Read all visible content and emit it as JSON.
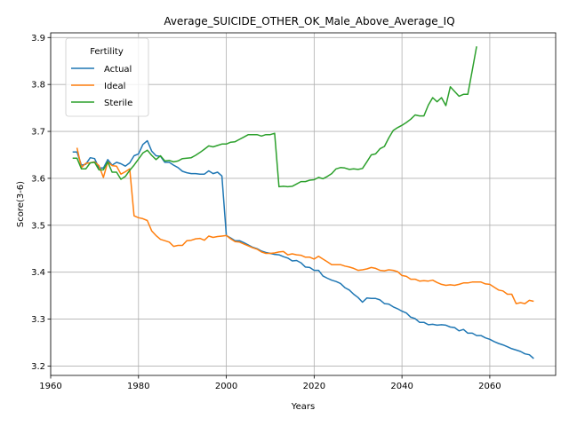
{
  "chart_data": {
    "type": "line",
    "title": "Average_SUICIDE_OTHER_OK_Male_Above_Average_IQ",
    "xlabel": "Years",
    "ylabel": "Score(3-6)",
    "xlim": [
      1960,
      2075
    ],
    "ylim": [
      3.18,
      3.91
    ],
    "xticks": [
      1960,
      1980,
      2000,
      2020,
      2040,
      2060
    ],
    "yticks": [
      3.2,
      3.3,
      3.4,
      3.5,
      3.6,
      3.7,
      3.8,
      3.9
    ],
    "grid": true,
    "legend": {
      "title": "Fertility",
      "location": "upper-left"
    },
    "series": [
      {
        "name": "Actual",
        "color": "#1f77b4",
        "points": [
          [
            1965,
            3.656
          ],
          [
            1966,
            3.656
          ],
          [
            1967,
            3.628
          ],
          [
            1968,
            3.63
          ],
          [
            1969,
            3.644
          ],
          [
            1970,
            3.642
          ],
          [
            1971,
            3.622
          ],
          [
            1972,
            3.622
          ],
          [
            1973,
            3.64
          ],
          [
            1974,
            3.628
          ],
          [
            1975,
            3.634
          ],
          [
            1976,
            3.631
          ],
          [
            1977,
            3.626
          ],
          [
            1978,
            3.633
          ],
          [
            1979,
            3.648
          ],
          [
            1980,
            3.652
          ],
          [
            1981,
            3.672
          ],
          [
            1982,
            3.68
          ],
          [
            1983,
            3.658
          ],
          [
            1984,
            3.648
          ],
          [
            1985,
            3.647
          ],
          [
            1986,
            3.634
          ],
          [
            1987,
            3.634
          ],
          [
            1988,
            3.628
          ],
          [
            1989,
            3.623
          ],
          [
            1990,
            3.615
          ],
          [
            1991,
            3.612
          ],
          [
            1992,
            3.61
          ],
          [
            1993,
            3.61
          ],
          [
            1994,
            3.609
          ],
          [
            1995,
            3.609
          ],
          [
            1996,
            3.616
          ],
          [
            1997,
            3.61
          ],
          [
            1998,
            3.613
          ],
          [
            1999,
            3.605
          ],
          [
            2000,
            3.478
          ],
          [
            2001,
            3.473
          ],
          [
            2002,
            3.467
          ],
          [
            2003,
            3.467
          ],
          [
            2004,
            3.463
          ],
          [
            2005,
            3.458
          ],
          [
            2006,
            3.453
          ],
          [
            2007,
            3.45
          ],
          [
            2008,
            3.445
          ],
          [
            2009,
            3.442
          ],
          [
            2010,
            3.44
          ],
          [
            2011,
            3.438
          ],
          [
            2012,
            3.437
          ],
          [
            2013,
            3.433
          ],
          [
            2014,
            3.43
          ],
          [
            2015,
            3.424
          ],
          [
            2016,
            3.425
          ],
          [
            2017,
            3.42
          ],
          [
            2018,
            3.411
          ],
          [
            2019,
            3.41
          ],
          [
            2020,
            3.404
          ],
          [
            2021,
            3.404
          ],
          [
            2022,
            3.392
          ],
          [
            2023,
            3.387
          ],
          [
            2024,
            3.383
          ],
          [
            2025,
            3.38
          ],
          [
            2026,
            3.376
          ],
          [
            2027,
            3.367
          ],
          [
            2028,
            3.362
          ],
          [
            2029,
            3.353
          ],
          [
            2030,
            3.346
          ],
          [
            2031,
            3.336
          ],
          [
            2032,
            3.345
          ],
          [
            2033,
            3.344
          ],
          [
            2034,
            3.344
          ],
          [
            2035,
            3.341
          ],
          [
            2036,
            3.333
          ],
          [
            2037,
            3.332
          ],
          [
            2038,
            3.326
          ],
          [
            2039,
            3.322
          ],
          [
            2040,
            3.317
          ],
          [
            2041,
            3.313
          ],
          [
            2042,
            3.304
          ],
          [
            2043,
            3.301
          ],
          [
            2044,
            3.293
          ],
          [
            2045,
            3.293
          ],
          [
            2046,
            3.288
          ],
          [
            2047,
            3.289
          ],
          [
            2048,
            3.287
          ],
          [
            2049,
            3.288
          ],
          [
            2050,
            3.287
          ],
          [
            2051,
            3.283
          ],
          [
            2052,
            3.282
          ],
          [
            2053,
            3.275
          ],
          [
            2054,
            3.278
          ],
          [
            2055,
            3.27
          ],
          [
            2056,
            3.27
          ],
          [
            2057,
            3.265
          ],
          [
            2058,
            3.265
          ],
          [
            2059,
            3.26
          ],
          [
            2060,
            3.257
          ],
          [
            2061,
            3.252
          ],
          [
            2062,
            3.248
          ],
          [
            2063,
            3.245
          ],
          [
            2064,
            3.241
          ],
          [
            2065,
            3.237
          ],
          [
            2066,
            3.234
          ],
          [
            2067,
            3.231
          ],
          [
            2068,
            3.226
          ],
          [
            2069,
            3.224
          ],
          [
            2070,
            3.216
          ]
        ]
      },
      {
        "name": "Ideal",
        "color": "#ff7f0e",
        "points": [
          [
            1966,
            3.665
          ],
          [
            1967,
            3.623
          ],
          [
            1968,
            3.632
          ],
          [
            1969,
            3.633
          ],
          [
            1970,
            3.635
          ],
          [
            1971,
            3.627
          ],
          [
            1972,
            3.602
          ],
          [
            1973,
            3.635
          ],
          [
            1974,
            3.627
          ],
          [
            1975,
            3.626
          ],
          [
            1976,
            3.609
          ],
          [
            1977,
            3.614
          ],
          [
            1978,
            3.62
          ],
          [
            1979,
            3.52
          ],
          [
            1980,
            3.516
          ],
          [
            1981,
            3.514
          ],
          [
            1982,
            3.51
          ],
          [
            1983,
            3.488
          ],
          [
            1984,
            3.478
          ],
          [
            1985,
            3.47
          ],
          [
            1986,
            3.467
          ],
          [
            1987,
            3.464
          ],
          [
            1988,
            3.455
          ],
          [
            1989,
            3.457
          ],
          [
            1990,
            3.457
          ],
          [
            1991,
            3.467
          ],
          [
            1992,
            3.468
          ],
          [
            1993,
            3.471
          ],
          [
            1994,
            3.472
          ],
          [
            1995,
            3.468
          ],
          [
            1996,
            3.477
          ],
          [
            1997,
            3.474
          ],
          [
            1998,
            3.476
          ],
          [
            1999,
            3.477
          ],
          [
            2000,
            3.478
          ],
          [
            2001,
            3.471
          ],
          [
            2002,
            3.465
          ],
          [
            2003,
            3.464
          ],
          [
            2004,
            3.46
          ],
          [
            2005,
            3.456
          ],
          [
            2006,
            3.452
          ],
          [
            2007,
            3.449
          ],
          [
            2008,
            3.443
          ],
          [
            2009,
            3.44
          ],
          [
            2010,
            3.44
          ],
          [
            2011,
            3.441
          ],
          [
            2012,
            3.443
          ],
          [
            2013,
            3.444
          ],
          [
            2014,
            3.437
          ],
          [
            2015,
            3.439
          ],
          [
            2016,
            3.437
          ],
          [
            2017,
            3.436
          ],
          [
            2018,
            3.432
          ],
          [
            2019,
            3.432
          ],
          [
            2020,
            3.428
          ],
          [
            2021,
            3.434
          ],
          [
            2022,
            3.428
          ],
          [
            2023,
            3.422
          ],
          [
            2024,
            3.416
          ],
          [
            2025,
            3.416
          ],
          [
            2026,
            3.416
          ],
          [
            2027,
            3.413
          ],
          [
            2028,
            3.411
          ],
          [
            2029,
            3.408
          ],
          [
            2030,
            3.404
          ],
          [
            2031,
            3.405
          ],
          [
            2032,
            3.407
          ],
          [
            2033,
            3.41
          ],
          [
            2034,
            3.408
          ],
          [
            2035,
            3.404
          ],
          [
            2036,
            3.403
          ],
          [
            2037,
            3.405
          ],
          [
            2038,
            3.404
          ],
          [
            2039,
            3.401
          ],
          [
            2040,
            3.393
          ],
          [
            2041,
            3.391
          ],
          [
            2042,
            3.385
          ],
          [
            2043,
            3.385
          ],
          [
            2044,
            3.381
          ],
          [
            2045,
            3.382
          ],
          [
            2046,
            3.381
          ],
          [
            2047,
            3.383
          ],
          [
            2048,
            3.378
          ],
          [
            2049,
            3.374
          ],
          [
            2050,
            3.372
          ],
          [
            2051,
            3.373
          ],
          [
            2052,
            3.372
          ],
          [
            2053,
            3.374
          ],
          [
            2054,
            3.377
          ],
          [
            2055,
            3.377
          ],
          [
            2056,
            3.379
          ],
          [
            2057,
            3.379
          ],
          [
            2058,
            3.379
          ],
          [
            2059,
            3.375
          ],
          [
            2060,
            3.374
          ],
          [
            2061,
            3.368
          ],
          [
            2062,
            3.362
          ],
          [
            2063,
            3.36
          ],
          [
            2064,
            3.353
          ],
          [
            2065,
            3.353
          ],
          [
            2066,
            3.333
          ],
          [
            2067,
            3.335
          ],
          [
            2068,
            3.333
          ],
          [
            2069,
            3.34
          ],
          [
            2070,
            3.338
          ]
        ]
      },
      {
        "name": "Sterile",
        "color": "#2ca02c",
        "points": [
          [
            1965,
            3.643
          ],
          [
            1966,
            3.643
          ],
          [
            1967,
            3.62
          ],
          [
            1968,
            3.62
          ],
          [
            1969,
            3.633
          ],
          [
            1970,
            3.634
          ],
          [
            1971,
            3.618
          ],
          [
            1972,
            3.618
          ],
          [
            1973,
            3.635
          ],
          [
            1974,
            3.613
          ],
          [
            1975,
            3.613
          ],
          [
            1976,
            3.598
          ],
          [
            1977,
            3.604
          ],
          [
            1978,
            3.617
          ],
          [
            1979,
            3.628
          ],
          [
            1980,
            3.641
          ],
          [
            1981,
            3.654
          ],
          [
            1982,
            3.66
          ],
          [
            1983,
            3.649
          ],
          [
            1984,
            3.64
          ],
          [
            1985,
            3.648
          ],
          [
            1986,
            3.637
          ],
          [
            1987,
            3.638
          ],
          [
            1988,
            3.635
          ],
          [
            1989,
            3.637
          ],
          [
            1990,
            3.642
          ],
          [
            1991,
            3.643
          ],
          [
            1992,
            3.644
          ],
          [
            1993,
            3.649
          ],
          [
            1994,
            3.655
          ],
          [
            1995,
            3.662
          ],
          [
            1996,
            3.669
          ],
          [
            1997,
            3.667
          ],
          [
            1998,
            3.67
          ],
          [
            1999,
            3.673
          ],
          [
            2000,
            3.673
          ],
          [
            2001,
            3.677
          ],
          [
            2002,
            3.678
          ],
          [
            2003,
            3.683
          ],
          [
            2004,
            3.688
          ],
          [
            2005,
            3.693
          ],
          [
            2006,
            3.693
          ],
          [
            2007,
            3.693
          ],
          [
            2008,
            3.69
          ],
          [
            2009,
            3.693
          ],
          [
            2010,
            3.693
          ],
          [
            2011,
            3.696
          ],
          [
            2012,
            3.582
          ],
          [
            2013,
            3.583
          ],
          [
            2014,
            3.582
          ],
          [
            2015,
            3.583
          ],
          [
            2016,
            3.588
          ],
          [
            2017,
            3.593
          ],
          [
            2018,
            3.593
          ],
          [
            2019,
            3.596
          ],
          [
            2020,
            3.597
          ],
          [
            2021,
            3.602
          ],
          [
            2022,
            3.599
          ],
          [
            2023,
            3.604
          ],
          [
            2024,
            3.61
          ],
          [
            2025,
            3.62
          ],
          [
            2026,
            3.623
          ],
          [
            2027,
            3.622
          ],
          [
            2028,
            3.619
          ],
          [
            2029,
            3.62
          ],
          [
            2030,
            3.619
          ],
          [
            2031,
            3.621
          ],
          [
            2032,
            3.635
          ],
          [
            2033,
            3.65
          ],
          [
            2034,
            3.652
          ],
          [
            2035,
            3.663
          ],
          [
            2036,
            3.668
          ],
          [
            2037,
            3.686
          ],
          [
            2038,
            3.702
          ],
          [
            2039,
            3.708
          ],
          [
            2040,
            3.713
          ],
          [
            2041,
            3.719
          ],
          [
            2042,
            3.726
          ],
          [
            2043,
            3.735
          ],
          [
            2044,
            3.733
          ],
          [
            2045,
            3.733
          ],
          [
            2046,
            3.756
          ],
          [
            2047,
            3.772
          ],
          [
            2048,
            3.763
          ],
          [
            2049,
            3.772
          ],
          [
            2050,
            3.755
          ],
          [
            2051,
            3.795
          ],
          [
            2052,
            3.785
          ],
          [
            2053,
            3.775
          ],
          [
            2054,
            3.779
          ],
          [
            2055,
            3.779
          ],
          [
            2056,
            3.83
          ],
          [
            2057,
            3.881
          ]
        ]
      }
    ]
  }
}
